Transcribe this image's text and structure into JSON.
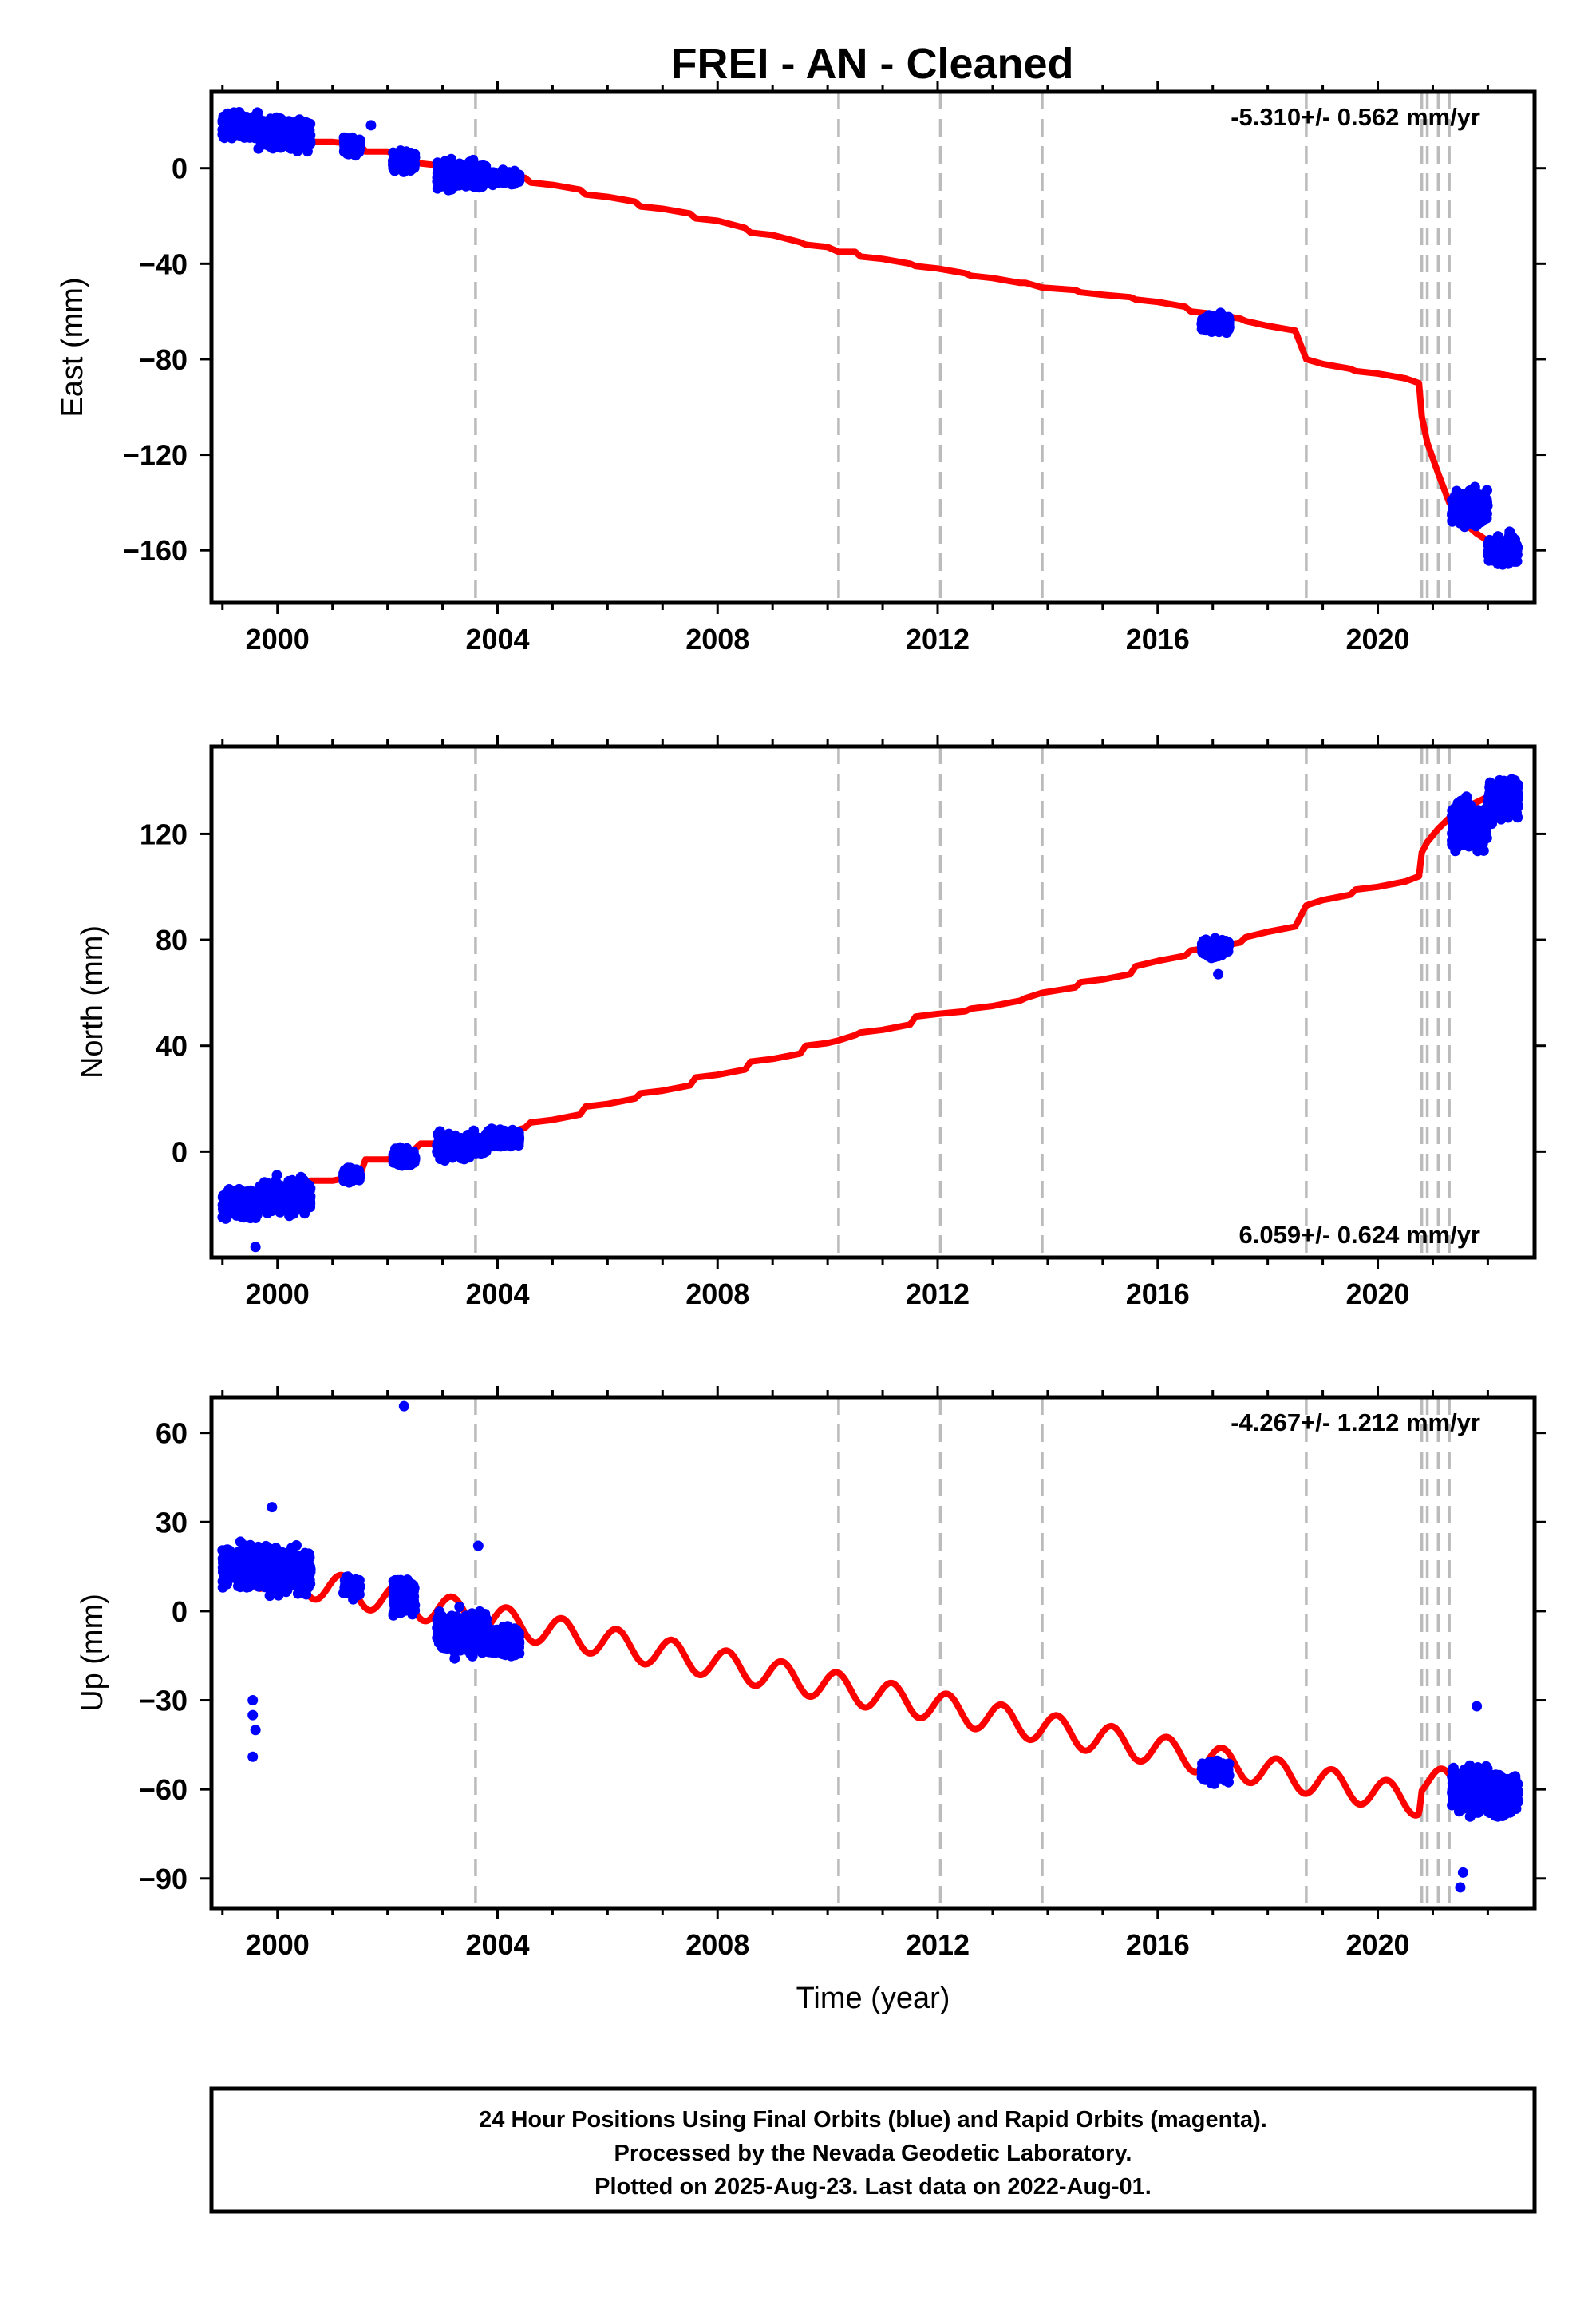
{
  "title": "FREI  - AN - Cleaned",
  "colors": {
    "final_orbits": "#0000ff",
    "model": "#ff0000",
    "breaks": "#bbbbbb",
    "axes": "#000000"
  },
  "footer": {
    "line1": "24 Hour Positions Using Final Orbits (blue) and Rapid Orbits (magenta).",
    "line2": "Processed by the Nevada Geodetic Laboratory.",
    "line3": "Plotted on 2025-Aug-23. Last data on 2022-Aug-01."
  },
  "chart_data": [
    {
      "type": "scatter",
      "component": "east",
      "ylabel": "East (mm)",
      "xlabel": "",
      "xlim": [
        1998.8,
        2022.85
      ],
      "ylim": [
        -182,
        32
      ],
      "xticks": [
        2000,
        2004,
        2008,
        2012,
        2016,
        2020
      ],
      "yticks": [
        0,
        -40,
        -80,
        -120,
        -160
      ],
      "ytick_labels": [
        "0",
        "−40",
        "−80",
        "−120",
        "−160"
      ],
      "rate_label": "-5.310+/- 0.562 mm/yr",
      "rate_position": "top-right",
      "breaks": [
        2003.6,
        2010.2,
        2012.05,
        2013.9,
        2018.7,
        2020.8,
        2020.9,
        2021.1,
        2021.3
      ],
      "series": [
        {
          "role": "model",
          "color": "#ff0000",
          "x": [
            1999.0,
            1999.5,
            1999.6,
            2000.5,
            2000.6,
            2001.0,
            2001.5,
            2001.6,
            2002.0,
            2002.5,
            2002.6,
            2003.0,
            2003.5,
            2003.6,
            2004.0,
            2004.5,
            2004.6,
            2005.0,
            2005.5,
            2005.6,
            2006.0,
            2006.5,
            2006.6,
            2007.0,
            2007.5,
            2007.6,
            2008.0,
            2008.5,
            2008.6,
            2009.0,
            2009.5,
            2009.6,
            2010.0,
            2010.2,
            2010.5,
            2010.6,
            2011.0,
            2011.5,
            2011.6,
            2012.0,
            2012.5,
            2012.6,
            2013.0,
            2013.5,
            2013.6,
            2013.9,
            2014.5,
            2014.6,
            2015.0,
            2015.5,
            2015.6,
            2016.0,
            2016.5,
            2016.6,
            2017.0,
            2017.5,
            2017.6,
            2018.0,
            2018.5,
            2018.7,
            2019.0,
            2019.5,
            2019.6,
            2020.0,
            2020.5,
            2020.75,
            2020.8,
            2020.9,
            2021.1,
            2021.3,
            2021.5,
            2021.8,
            2022.0,
            2022.3,
            2022.55
          ],
          "y": [
            18,
            18,
            16,
            13,
            11,
            11,
            10,
            7,
            7,
            3,
            2,
            1,
            -1,
            -1,
            -2,
            -4,
            -6,
            -7,
            -9,
            -11,
            -12,
            -14,
            -16,
            -17,
            -19,
            -21,
            -22,
            -25,
            -27,
            -28,
            -31,
            -32,
            -33,
            -35,
            -35,
            -37,
            -38,
            -40,
            -41,
            -42,
            -44,
            -45,
            -46,
            -48,
            -48,
            -50,
            -51,
            -52,
            -53,
            -54,
            -55,
            -56,
            -58,
            -60,
            -61,
            -63,
            -64,
            -66,
            -68,
            -80,
            -82,
            -84,
            -85,
            -86,
            -88,
            -90,
            -104,
            -115,
            -128,
            -140,
            -147,
            -153,
            -156,
            -158,
            -158
          ]
        },
        {
          "role": "final_orbits",
          "color": "#0000ff",
          "clusters": [
            {
              "x": [
                1999.0,
                1999.65
              ],
              "y": [
                18,
                6
              ]
            },
            {
              "x": [
                1999.65,
                2000.6
              ],
              "y": [
                14,
                7
              ]
            },
            {
              "x": [
                2001.2,
                2001.5
              ],
              "y": [
                9,
                4
              ]
            },
            {
              "x": [
                2002.1,
                2002.5
              ],
              "y": [
                3,
                5
              ]
            },
            {
              "x": [
                2002.9,
                2003.8
              ],
              "y": [
                -3,
                6
              ]
            },
            {
              "x": [
                2003.8,
                2004.4
              ],
              "y": [
                -4,
                3
              ]
            },
            {
              "x": [
                2016.8,
                2017.3
              ],
              "y": [
                -65,
                4
              ]
            },
            {
              "x": [
                2021.35,
                2022.0
              ],
              "y": [
                -142,
                8
              ]
            },
            {
              "x": [
                2022.0,
                2022.55
              ],
              "y": [
                -160,
                7
              ]
            }
          ],
          "outliers": [
            {
              "x": 2001.7,
              "y": 18
            }
          ]
        }
      ]
    },
    {
      "type": "scatter",
      "component": "north",
      "ylabel": "North (mm)",
      "xlabel": "",
      "xlim": [
        1998.8,
        2022.85
      ],
      "ylim": [
        -40,
        153
      ],
      "xticks": [
        2000,
        2004,
        2008,
        2012,
        2016,
        2020
      ],
      "yticks": [
        0,
        40,
        80,
        120
      ],
      "ytick_labels": [
        "0",
        "40",
        "80",
        "120"
      ],
      "rate_label": "6.059+/- 0.624 mm/yr",
      "rate_position": "bottom-right",
      "breaks": [
        2003.6,
        2010.2,
        2012.05,
        2013.9,
        2018.7,
        2020.8,
        2020.9,
        2021.1,
        2021.3
      ],
      "series": [
        {
          "role": "model",
          "color": "#ff0000",
          "x": [
            1999.0,
            1999.5,
            1999.6,
            2000.5,
            2000.6,
            2001.0,
            2001.5,
            2001.6,
            2002.0,
            2002.5,
            2002.6,
            2003.0,
            2003.5,
            2003.6,
            2004.0,
            2004.5,
            2004.6,
            2005.0,
            2005.5,
            2005.6,
            2006.0,
            2006.5,
            2006.6,
            2007.0,
            2007.5,
            2007.6,
            2008.0,
            2008.5,
            2008.6,
            2009.0,
            2009.5,
            2009.6,
            2010.0,
            2010.2,
            2010.5,
            2010.6,
            2011.0,
            2011.5,
            2011.6,
            2012.0,
            2012.5,
            2012.6,
            2013.0,
            2013.5,
            2013.6,
            2013.9,
            2014.5,
            2014.6,
            2015.0,
            2015.5,
            2015.6,
            2016.0,
            2016.5,
            2016.6,
            2017.0,
            2017.5,
            2017.6,
            2018.0,
            2018.5,
            2018.7,
            2019.0,
            2019.5,
            2019.6,
            2020.0,
            2020.5,
            2020.75,
            2020.8,
            2020.9,
            2021.1,
            2021.3,
            2021.5,
            2021.8,
            2022.0,
            2022.3,
            2022.55
          ],
          "y": [
            -22,
            -24,
            -18,
            -16,
            -11,
            -11,
            -9,
            -3,
            -3,
            1,
            3,
            3,
            5,
            5,
            6,
            9,
            11,
            12,
            14,
            17,
            18,
            20,
            22,
            23,
            25,
            28,
            29,
            31,
            34,
            35,
            37,
            40,
            41,
            42,
            44,
            45,
            46,
            48,
            51,
            52,
            53,
            54,
            55,
            57,
            58,
            60,
            62,
            64,
            65,
            67,
            70,
            72,
            74,
            76,
            77,
            79,
            81,
            83,
            85,
            93,
            95,
            97,
            99,
            100,
            102,
            104,
            113,
            117,
            122,
            126,
            129,
            132,
            134,
            135,
            136
          ]
        },
        {
          "role": "final_orbits",
          "color": "#0000ff",
          "clusters": [
            {
              "x": [
                1999.0,
                1999.65
              ],
              "y": [
                -20,
                6
              ]
            },
            {
              "x": [
                1999.65,
                2000.6
              ],
              "y": [
                -17,
                7
              ]
            },
            {
              "x": [
                2001.2,
                2001.5
              ],
              "y": [
                -9,
                3
              ]
            },
            {
              "x": [
                2002.1,
                2002.5
              ],
              "y": [
                -2,
                4
              ]
            },
            {
              "x": [
                2002.9,
                2003.8
              ],
              "y": [
                2,
                5
              ]
            },
            {
              "x": [
                2003.8,
                2004.4
              ],
              "y": [
                5,
                4
              ]
            },
            {
              "x": [
                2016.8,
                2017.3
              ],
              "y": [
                77,
                4
              ]
            },
            {
              "x": [
                2021.35,
                2022.0
              ],
              "y": [
                123,
                10
              ]
            },
            {
              "x": [
                2022.0,
                2022.55
              ],
              "y": [
                133,
                9
              ]
            }
          ],
          "outliers": [
            {
              "x": 2017.1,
              "y": 67
            },
            {
              "x": 1999.6,
              "y": -36
            }
          ]
        }
      ]
    },
    {
      "type": "scatter",
      "component": "up",
      "ylabel": "Up (mm)",
      "xlabel": "Time (year)",
      "xlim": [
        1998.8,
        2022.85
      ],
      "ylim": [
        -100,
        72
      ],
      "xticks": [
        2000,
        2004,
        2008,
        2012,
        2016,
        2020
      ],
      "yticks": [
        60,
        30,
        0,
        -30,
        -60,
        -90
      ],
      "ytick_labels": [
        "60",
        "30",
        "0",
        "−30",
        "−60",
        "−90"
      ],
      "rate_label": "-4.267+/- 1.212 mm/yr",
      "rate_position": "top-right",
      "breaks": [
        2003.6,
        2010.2,
        2012.05,
        2013.9,
        2018.7,
        2020.8,
        2020.9,
        2021.1,
        2021.3
      ],
      "series": [
        {
          "role": "model",
          "color": "#ff0000",
          "trend_x": [
            1999.0,
            2020.75,
            2020.8,
            2022.55
          ],
          "trend_y": [
            15,
            -64,
            -57,
            -62
          ],
          "seasonal_amplitude": 5,
          "seasonal_period_years": 1.0
        },
        {
          "role": "final_orbits",
          "color": "#0000ff",
          "clusters": [
            {
              "x": [
                1999.0,
                1999.65
              ],
              "y": [
                15,
                8
              ]
            },
            {
              "x": [
                1999.65,
                2000.6
              ],
              "y": [
                14,
                9
              ]
            },
            {
              "x": [
                2001.2,
                2001.5
              ],
              "y": [
                8,
                4
              ]
            },
            {
              "x": [
                2002.1,
                2002.5
              ],
              "y": [
                5,
                7
              ]
            },
            {
              "x": [
                2002.9,
                2003.8
              ],
              "y": [
                -7,
                8
              ]
            },
            {
              "x": [
                2003.8,
                2004.4
              ],
              "y": [
                -10,
                6
              ]
            },
            {
              "x": [
                2016.8,
                2017.3
              ],
              "y": [
                -54,
                4
              ]
            },
            {
              "x": [
                2021.35,
                2022.0
              ],
              "y": [
                -60,
                9
              ]
            },
            {
              "x": [
                2022.0,
                2022.55
              ],
              "y": [
                -62,
                8
              ]
            }
          ],
          "outliers": [
            {
              "x": 2002.3,
              "y": 69
            },
            {
              "x": 1999.55,
              "y": -30
            },
            {
              "x": 1999.55,
              "y": -35
            },
            {
              "x": 1999.55,
              "y": -49
            },
            {
              "x": 1999.6,
              "y": -40
            },
            {
              "x": 2021.5,
              "y": -93
            },
            {
              "x": 2021.55,
              "y": -88
            },
            {
              "x": 2021.8,
              "y": -32
            },
            {
              "x": 1999.9,
              "y": 35
            },
            {
              "x": 2003.65,
              "y": 22
            }
          ]
        }
      ]
    }
  ]
}
